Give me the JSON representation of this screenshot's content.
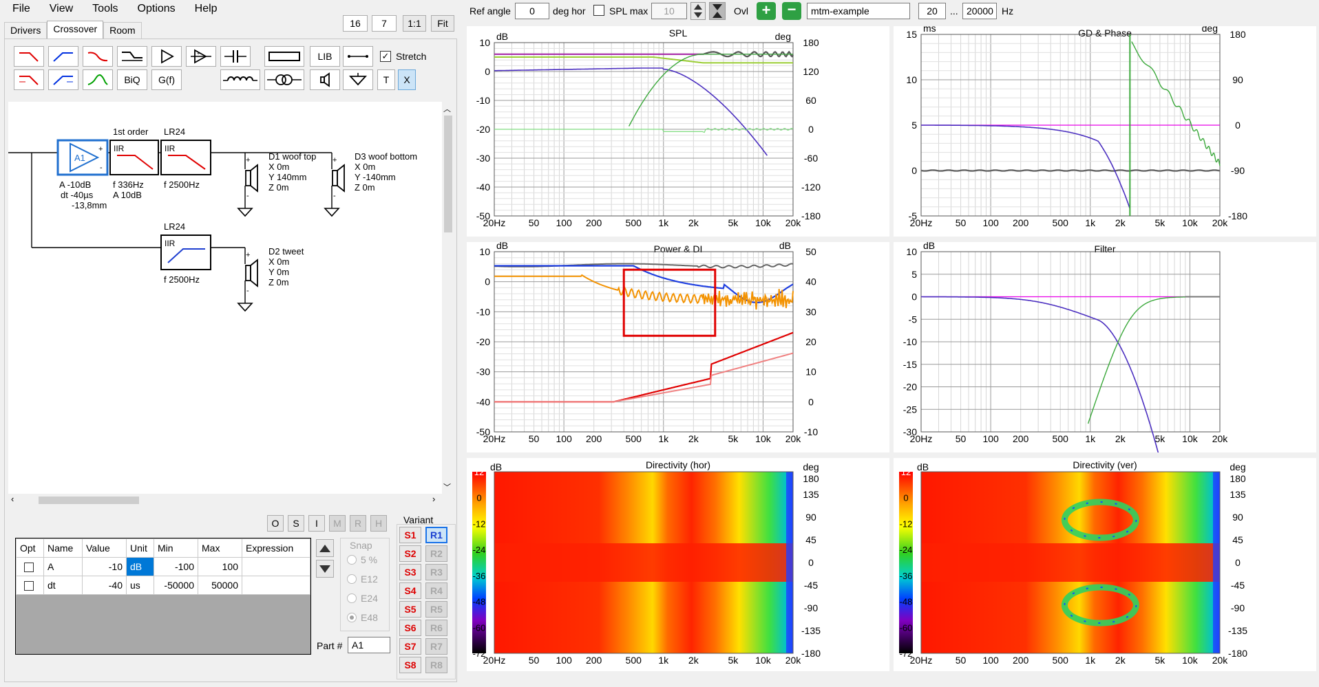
{
  "menu": [
    "File",
    "View",
    "Tools",
    "Options",
    "Help"
  ],
  "view_buttons": [
    "16",
    "7",
    "1:1",
    "Fit"
  ],
  "tabs": [
    "Drivers",
    "Crossover",
    "Room"
  ],
  "toolbar": {
    "lib_label": "LIB",
    "biq_label": "BiQ",
    "gf_label": "G(f)",
    "t_label": "T",
    "x_label": "X",
    "stretch_label": "Stretch",
    "stretch_checked": true
  },
  "schematic": {
    "amp": {
      "name": "A1",
      "params": [
        "A  -10dB",
        "dt -40µs",
        "-13,8mm"
      ]
    },
    "block1": {
      "header": "1st order",
      "type": "IIR",
      "params": [
        "f   336Hz",
        "A  10dB"
      ]
    },
    "block2": {
      "header": "LR24",
      "type": "IIR",
      "params": [
        "f   2500Hz"
      ]
    },
    "block3": {
      "header": "LR24",
      "type": "IIR",
      "params": [
        "f   2500Hz"
      ]
    },
    "d1": {
      "name": "D1 woof top",
      "lines": [
        "X 0m",
        "Y 140mm",
        "Z 0m"
      ]
    },
    "d3": {
      "name": "D3 woof bottom",
      "lines": [
        "X 0m",
        "Y -140mm",
        "Z 0m"
      ]
    },
    "d2": {
      "name": "D2 tweet",
      "lines": [
        "X 0m",
        "Y 0m",
        "Z 0m"
      ]
    }
  },
  "opt_buttons": [
    "O",
    "S",
    "I",
    "M",
    "R",
    "H"
  ],
  "table": {
    "headers": [
      "Opt",
      "Name",
      "Value",
      "Unit",
      "Min",
      "Max",
      "Expression"
    ],
    "rows": [
      {
        "name": "A",
        "value": "-10",
        "unit": "dB",
        "min": "-100",
        "max": "100",
        "expr": ""
      },
      {
        "name": "dt",
        "value": "-40",
        "unit": "us",
        "min": "-50000",
        "max": "50000",
        "expr": ""
      }
    ]
  },
  "snap": {
    "label": "Snap",
    "options": [
      "5 %",
      "E12",
      "E24",
      "E48"
    ],
    "selected": "E48"
  },
  "part": {
    "label": "Part #",
    "value": "A1"
  },
  "variant": {
    "label": "Variant",
    "s": [
      "S1",
      "S2",
      "S3",
      "S4",
      "S5",
      "S6",
      "S7",
      "S8"
    ],
    "r": [
      "R1",
      "R2",
      "R3",
      "R4",
      "R5",
      "R6",
      "R7",
      "R8"
    ],
    "active": "R1"
  },
  "topbar": {
    "ref_angle_label": "Ref angle",
    "ref_angle_value": "0",
    "deg_hor_label": "deg hor",
    "spl_max_label": "SPL max",
    "spl_max_value": "10",
    "ovl_label": "Ovl",
    "name_value": "mtm-example",
    "fmin": "20",
    "ellipsis": "...",
    "fmax": "20000",
    "hz_label": "Hz"
  },
  "freq_ticks": [
    "20Hz",
    "50",
    "100",
    "200",
    "500",
    "1k",
    "2k",
    "5k",
    "10k",
    "20k"
  ],
  "panels": {
    "spl": {
      "title": "SPL",
      "left_unit": "dB",
      "right_unit": "deg",
      "left_ticks": [
        "10",
        "0",
        "-10",
        "-20",
        "-30",
        "-40",
        "-50"
      ],
      "right_ticks": [
        "180",
        "120",
        "60",
        "0",
        "-60",
        "-120",
        "-180"
      ]
    },
    "gd": {
      "title": "GD & Phase",
      "left_unit": "ms",
      "right_unit": "deg",
      "left_ticks": [
        "15",
        "10",
        "5",
        "0",
        "-5"
      ],
      "right_ticks": [
        "180",
        "90",
        "0",
        "-90",
        "-180"
      ]
    },
    "power": {
      "title": "Power & DI",
      "left_unit": "dB",
      "right_unit": "dB",
      "left_ticks": [
        "10",
        "0",
        "-10",
        "-20",
        "-30",
        "-40",
        "-50"
      ],
      "right_ticks": [
        "50",
        "40",
        "30",
        "20",
        "10",
        "0",
        "-10"
      ]
    },
    "filter": {
      "title": "Filter",
      "left_unit": "dB",
      "left_ticks": [
        "10",
        "5",
        "0",
        "-5",
        "-10",
        "-15",
        "-20",
        "-25",
        "-30"
      ]
    },
    "dirh": {
      "title": "Directivity (hor)",
      "left_unit": "dB",
      "right_unit": "deg",
      "left_ticks": [
        "12",
        "0",
        "-12",
        "-24",
        "-36",
        "-48",
        "-60",
        "-72"
      ],
      "right_ticks": [
        "180",
        "135",
        "90",
        "45",
        "0",
        "-45",
        "-90",
        "-135",
        "-180"
      ]
    },
    "dirv": {
      "title": "Directivity (ver)",
      "left_unit": "dB",
      "right_unit": "deg",
      "left_ticks": [
        "12",
        "0",
        "-12",
        "-24",
        "-36",
        "-48",
        "-60",
        "-72"
      ],
      "right_ticks": [
        "180",
        "135",
        "90",
        "45",
        "0",
        "-45",
        "-90",
        "-135",
        "-180"
      ]
    }
  }
}
